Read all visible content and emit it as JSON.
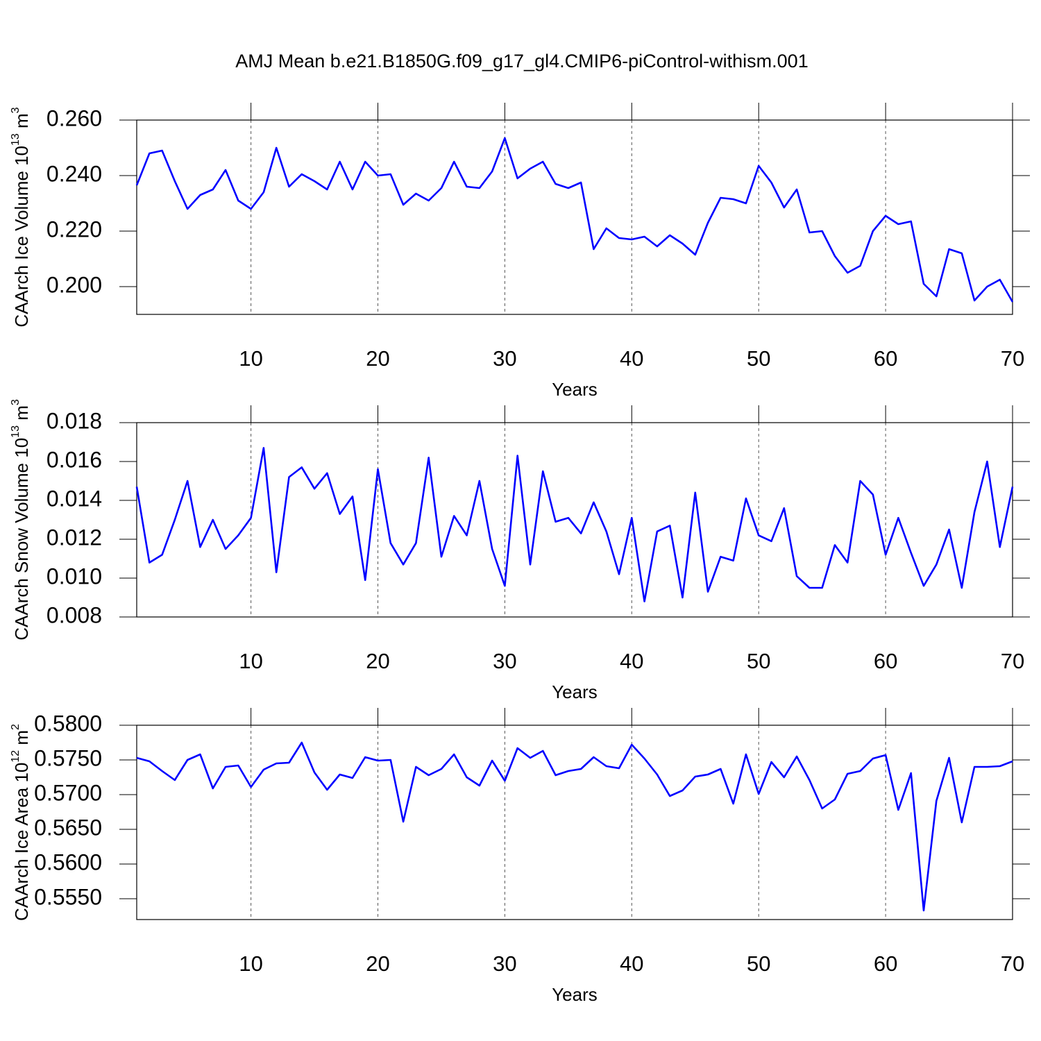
{
  "title": "AMJ Mean b.e21.B1850G.f09_g17_gl4.CMIP6-piControl-withism.001",
  "chart_data": [
    {
      "type": "line",
      "ylabel": [
        "CAArch Ice Volume 10",
        "13",
        " m",
        "3"
      ],
      "xlabel": "Years",
      "color": "#0000ff",
      "grid": true,
      "x": [
        1,
        2,
        3,
        4,
        5,
        6,
        7,
        8,
        9,
        10,
        11,
        12,
        13,
        14,
        15,
        16,
        17,
        18,
        19,
        20,
        21,
        22,
        23,
        24,
        25,
        26,
        27,
        28,
        29,
        30,
        31,
        32,
        33,
        34,
        35,
        36,
        37,
        38,
        39,
        40,
        41,
        42,
        43,
        44,
        45,
        46,
        47,
        48,
        49,
        50,
        51,
        52,
        53,
        54,
        55,
        56,
        57,
        58,
        59,
        60,
        61,
        62,
        63,
        64,
        65,
        66,
        67,
        68,
        69,
        70
      ],
      "values": [
        0.2365,
        0.248,
        0.249,
        0.238,
        0.228,
        0.233,
        0.235,
        0.242,
        0.231,
        0.228,
        0.234,
        0.25,
        0.236,
        0.2405,
        0.238,
        0.235,
        0.245,
        0.235,
        0.245,
        0.24,
        0.2405,
        0.2295,
        0.2335,
        0.231,
        0.2355,
        0.245,
        0.236,
        0.2355,
        0.2415,
        0.2535,
        0.239,
        0.2425,
        0.245,
        0.237,
        0.2355,
        0.2375,
        0.2135,
        0.221,
        0.2175,
        0.217,
        0.218,
        0.2145,
        0.2185,
        0.2155,
        0.2115,
        0.223,
        0.232,
        0.2315,
        0.23,
        0.2435,
        0.2375,
        0.2285,
        0.235,
        0.2195,
        0.22,
        0.211,
        0.205,
        0.2075,
        0.22,
        0.2255,
        0.2225,
        0.2235,
        0.201,
        0.1965,
        0.2135,
        0.212,
        0.195,
        0.2,
        0.2025,
        0.1945
      ],
      "xlim": [
        1,
        70
      ],
      "xticks": [
        10,
        20,
        30,
        40,
        50,
        60,
        70
      ],
      "ylim": [
        0.19,
        0.26
      ],
      "yticks": [
        {
          "value": 0.2,
          "label": "0.200"
        },
        {
          "value": 0.22,
          "label": "0.220"
        },
        {
          "value": 0.24,
          "label": "0.240"
        },
        {
          "value": 0.26,
          "label": "0.260"
        }
      ]
    },
    {
      "type": "line",
      "ylabel": [
        "CAArch Snow Volume 10",
        "13",
        " m",
        "3"
      ],
      "xlabel": "Years",
      "color": "#0000ff",
      "grid": true,
      "x": [
        1,
        2,
        3,
        4,
        5,
        6,
        7,
        8,
        9,
        10,
        11,
        12,
        13,
        14,
        15,
        16,
        17,
        18,
        19,
        20,
        21,
        22,
        23,
        24,
        25,
        26,
        27,
        28,
        29,
        30,
        31,
        32,
        33,
        34,
        35,
        36,
        37,
        38,
        39,
        40,
        41,
        42,
        43,
        44,
        45,
        46,
        47,
        48,
        49,
        50,
        51,
        52,
        53,
        54,
        55,
        56,
        57,
        58,
        59,
        60,
        61,
        62,
        63,
        64,
        65,
        66,
        67,
        68,
        69,
        70
      ],
      "values": [
        0.0147,
        0.0108,
        0.0112,
        0.013,
        0.015,
        0.0116,
        0.013,
        0.0115,
        0.0122,
        0.0131,
        0.0167,
        0.0103,
        0.0152,
        0.0157,
        0.0146,
        0.0154,
        0.0133,
        0.0142,
        0.0099,
        0.0156,
        0.0118,
        0.0107,
        0.0118,
        0.0162,
        0.0111,
        0.0132,
        0.0122,
        0.015,
        0.0115,
        0.0096,
        0.0163,
        0.0107,
        0.0155,
        0.0129,
        0.0131,
        0.0123,
        0.0139,
        0.0124,
        0.0102,
        0.0131,
        0.0088,
        0.0124,
        0.0127,
        0.009,
        0.0144,
        0.0093,
        0.0111,
        0.0109,
        0.0141,
        0.0122,
        0.0119,
        0.0136,
        0.0101,
        0.0095,
        0.0095,
        0.0117,
        0.0108,
        0.015,
        0.0143,
        0.0112,
        0.0131,
        0.0113,
        0.0096,
        0.0107,
        0.0125,
        0.0095,
        0.0134,
        0.016,
        0.0116,
        0.0147
      ],
      "xlim": [
        1,
        70
      ],
      "xticks": [
        10,
        20,
        30,
        40,
        50,
        60,
        70
      ],
      "ylim": [
        0.008,
        0.018
      ],
      "yticks": [
        0.008,
        {
          "value": 0.01,
          "label": "0.010"
        },
        0.012,
        0.014,
        0.016,
        0.018
      ]
    },
    {
      "type": "line",
      "ylabel": [
        "CAArch Ice Area 10",
        "12",
        " m",
        "2"
      ],
      "xlabel": "Years",
      "color": "#0000ff",
      "grid": true,
      "x": [
        1,
        2,
        3,
        4,
        5,
        6,
        7,
        8,
        9,
        10,
        11,
        12,
        13,
        14,
        15,
        16,
        17,
        18,
        19,
        20,
        21,
        22,
        23,
        24,
        25,
        26,
        27,
        28,
        29,
        30,
        31,
        32,
        33,
        34,
        35,
        36,
        37,
        38,
        39,
        40,
        41,
        42,
        43,
        44,
        45,
        46,
        47,
        48,
        49,
        50,
        51,
        52,
        53,
        54,
        55,
        56,
        57,
        58,
        59,
        60,
        61,
        62,
        63,
        64,
        65,
        66,
        67,
        68,
        69,
        70
      ],
      "values": [
        0.5753,
        0.5748,
        0.5734,
        0.5721,
        0.575,
        0.5758,
        0.5709,
        0.574,
        0.5742,
        0.5711,
        0.5736,
        0.5745,
        0.5746,
        0.5775,
        0.5732,
        0.5707,
        0.5729,
        0.5724,
        0.5754,
        0.5749,
        0.575,
        0.5661,
        0.574,
        0.5728,
        0.5737,
        0.5758,
        0.5725,
        0.5713,
        0.5749,
        0.572,
        0.5767,
        0.5753,
        0.5763,
        0.5728,
        0.5734,
        0.5737,
        0.5754,
        0.5741,
        0.5738,
        0.5772,
        0.5752,
        0.5729,
        0.5698,
        0.5706,
        0.5726,
        0.5729,
        0.5737,
        0.5687,
        0.5758,
        0.5701,
        0.5747,
        0.5725,
        0.5755,
        0.5721,
        0.568,
        0.5693,
        0.573,
        0.5734,
        0.5752,
        0.5757,
        0.5678,
        0.5731,
        0.5533,
        0.5691,
        0.5753,
        0.566,
        0.574,
        0.574,
        0.5741,
        0.5748
      ],
      "xlim": [
        1,
        70
      ],
      "xticks": [
        10,
        20,
        30,
        40,
        50,
        60,
        70
      ],
      "ylim": [
        0.552,
        0.58
      ],
      "yticks": [
        {
          "value": 0.555,
          "label": "0.5550"
        },
        {
          "value": 0.56,
          "label": "0.5600"
        },
        {
          "value": 0.565,
          "label": "0.5650"
        },
        {
          "value": 0.57,
          "label": "0.5700"
        },
        {
          "value": 0.575,
          "label": "0.5750"
        },
        {
          "value": 0.58,
          "label": "0.5800"
        }
      ]
    }
  ]
}
